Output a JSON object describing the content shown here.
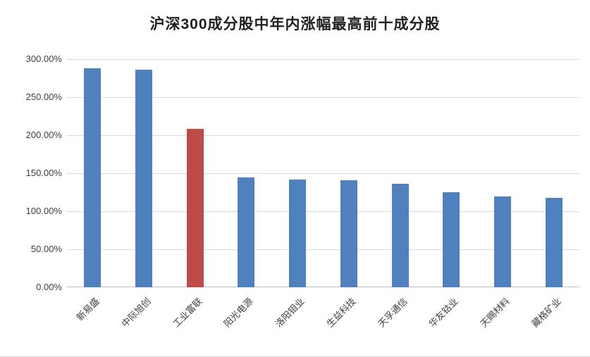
{
  "chart_data": {
    "type": "bar",
    "title": "沪深300成分股中年内涨幅最高前十成分股",
    "categories": [
      "新易盛",
      "中际旭创",
      "工业富联",
      "阳光电源",
      "洛阳钼业",
      "生益科技",
      "天孚通信",
      "华友钴业",
      "天赐材料",
      "藏格矿业"
    ],
    "values": [
      288,
      286,
      208,
      144,
      142,
      141,
      136,
      125,
      119,
      118
    ],
    "value_unit": "percent",
    "xlabel": "",
    "ylabel": "",
    "ylim": [
      0,
      300
    ],
    "ytick_step": 50,
    "ytick_labels": [
      "0.00%",
      "50.00%",
      "100.00%",
      "150.00%",
      "200.00%",
      "250.00%",
      "300.00%"
    ],
    "grid": true,
    "legend": false,
    "bar_color": "#4E81BD",
    "highlight_color": "#BE4B48",
    "highlight_index": 2
  }
}
